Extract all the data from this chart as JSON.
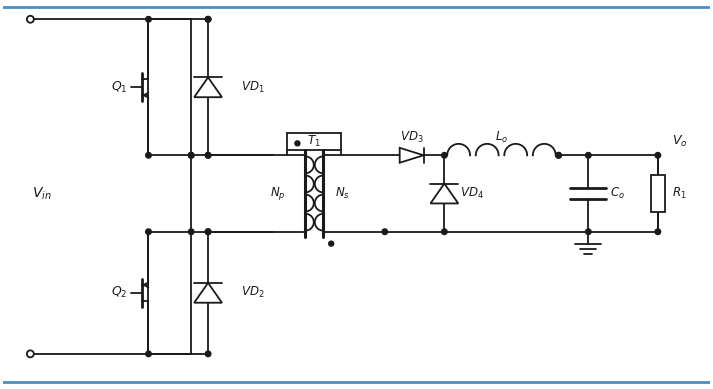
{
  "bg_color": "#ffffff",
  "line_color": "#1a1a1a",
  "text_color": "#1a1a1a",
  "lw": 1.3,
  "fig_width": 7.13,
  "fig_height": 3.89,
  "blue_border": "#4a90c4"
}
